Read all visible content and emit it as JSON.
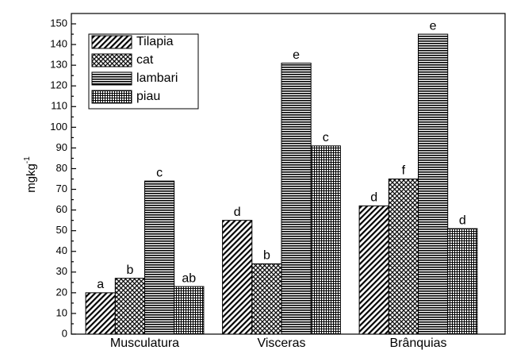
{
  "chart_data": {
    "type": "bar",
    "ylabel": "mgkg",
    "ylabel_sup": "-1",
    "categories": [
      "Musculatura",
      "Visceras",
      "Brânquias"
    ],
    "series": [
      {
        "name": "Tilapia",
        "color": "#000000",
        "pattern": "diagonal",
        "values": [
          20,
          55,
          62
        ],
        "labels": [
          "a",
          "d",
          "d"
        ]
      },
      {
        "name": "cat",
        "color": "#000000",
        "pattern": "crosshatch",
        "values": [
          27,
          34,
          75
        ],
        "labels": [
          "b",
          "b",
          "f"
        ]
      },
      {
        "name": "lambari",
        "color": "#000000",
        "pattern": "horizontal",
        "values": [
          74,
          131,
          145
        ],
        "labels": [
          "c",
          "e",
          "e"
        ]
      },
      {
        "name": "piau",
        "color": "#000000",
        "pattern": "grid",
        "values": [
          23,
          91,
          51
        ],
        "labels": [
          "ab",
          "c",
          "d"
        ]
      }
    ],
    "ylim": [
      0,
      155
    ],
    "yticks": [
      0,
      10,
      20,
      30,
      40,
      50,
      60,
      70,
      80,
      90,
      100,
      110,
      120,
      130,
      140,
      150
    ],
    "legend": "upper left"
  }
}
